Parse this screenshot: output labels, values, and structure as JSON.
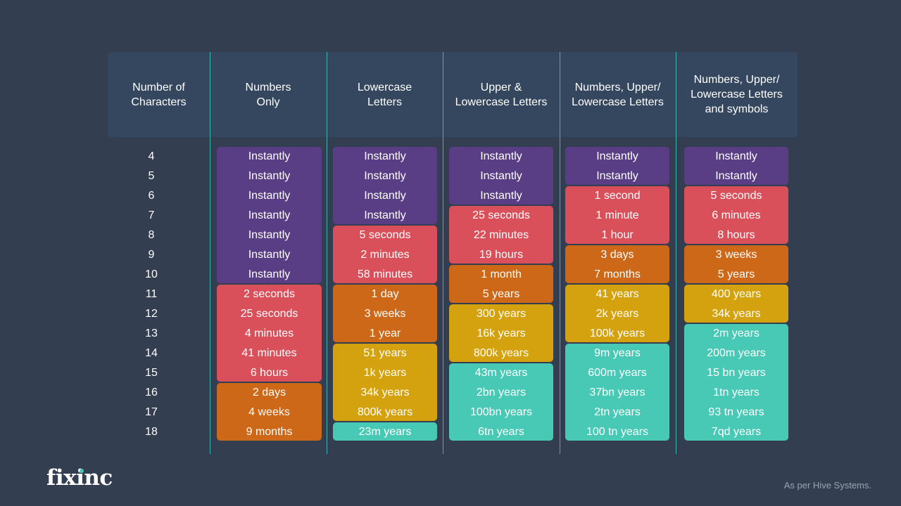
{
  "colors": {
    "background": "#333e50",
    "header_band": "#35475f",
    "divider": "#3fb4b0",
    "instantly": "#5a3e85",
    "seconds_to_hours": "#d9505a",
    "days_to_months": "#cc6817",
    "years_to_thousands": "#d4a20e",
    "millions_and_more": "#48c9b6"
  },
  "brand": {
    "logo_text": "fixinc",
    "source_note": "As per Hive Systems."
  },
  "chart_data": {
    "type": "table",
    "row_header": "Number of\nCharacters",
    "rows": [
      "4",
      "5",
      "6",
      "7",
      "8",
      "9",
      "10",
      "11",
      "12",
      "13",
      "14",
      "15",
      "16",
      "17",
      "18"
    ],
    "columns": [
      {
        "name": "Numbers\nOnly",
        "values": [
          "Instantly",
          "Instantly",
          "Instantly",
          "Instantly",
          "Instantly",
          "Instantly",
          "Instantly",
          "2 seconds",
          "25 seconds",
          "4 minutes",
          "41 minutes",
          "6 hours",
          "2 days",
          "4 weeks",
          "9 months"
        ],
        "tiers": [
          "instantly",
          "instantly",
          "instantly",
          "instantly",
          "instantly",
          "instantly",
          "instantly",
          "seconds_to_hours",
          "seconds_to_hours",
          "seconds_to_hours",
          "seconds_to_hours",
          "seconds_to_hours",
          "days_to_months",
          "days_to_months",
          "days_to_months"
        ]
      },
      {
        "name": "Lowercase\nLetters",
        "values": [
          "Instantly",
          "Instantly",
          "Instantly",
          "Instantly",
          "5 seconds",
          "2 minutes",
          "58 minutes",
          "1 day",
          "3 weeks",
          "1 year",
          "51 years",
          "1k years",
          "34k years",
          "800k years",
          "23m years"
        ],
        "tiers": [
          "instantly",
          "instantly",
          "instantly",
          "instantly",
          "seconds_to_hours",
          "seconds_to_hours",
          "seconds_to_hours",
          "days_to_months",
          "days_to_months",
          "days_to_months",
          "years_to_thousands",
          "years_to_thousands",
          "years_to_thousands",
          "years_to_thousands",
          "millions_and_more"
        ]
      },
      {
        "name": "Upper &\nLowercase Letters",
        "values": [
          "Instantly",
          "Instantly",
          "Instantly",
          "25 seconds",
          "22 minutes",
          "19 hours",
          "1 month",
          "5 years",
          "300 years",
          "16k years",
          "800k years",
          "43m years",
          "2bn years",
          "100bn years",
          "6tn years"
        ],
        "tiers": [
          "instantly",
          "instantly",
          "instantly",
          "seconds_to_hours",
          "seconds_to_hours",
          "seconds_to_hours",
          "days_to_months",
          "days_to_months",
          "years_to_thousands",
          "years_to_thousands",
          "years_to_thousands",
          "millions_and_more",
          "millions_and_more",
          "millions_and_more",
          "millions_and_more"
        ]
      },
      {
        "name": "Numbers, Upper/\nLowercase Letters",
        "values": [
          "Instantly",
          "Instantly",
          "1 second",
          "1 minute",
          "1 hour",
          "3 days",
          "7 months",
          "41 years",
          "2k years",
          "100k years",
          "9m years",
          "600m years",
          "37bn years",
          "2tn years",
          "100 tn years"
        ],
        "tiers": [
          "instantly",
          "instantly",
          "seconds_to_hours",
          "seconds_to_hours",
          "seconds_to_hours",
          "days_to_months",
          "days_to_months",
          "years_to_thousands",
          "years_to_thousands",
          "years_to_thousands",
          "millions_and_more",
          "millions_and_more",
          "millions_and_more",
          "millions_and_more",
          "millions_and_more"
        ]
      },
      {
        "name": "Numbers, Upper/\nLowercase Letters\nand symbols",
        "values": [
          "Instantly",
          "Instantly",
          "5 seconds",
          "6 minutes",
          "8 hours",
          "3 weeks",
          "5 years",
          "400 years",
          "34k years",
          "2m years",
          "200m years",
          "15 bn years",
          "1tn years",
          "93 tn years",
          "7qd years"
        ],
        "tiers": [
          "instantly",
          "instantly",
          "seconds_to_hours",
          "seconds_to_hours",
          "seconds_to_hours",
          "days_to_months",
          "days_to_months",
          "years_to_thousands",
          "years_to_thousands",
          "millions_and_more",
          "millions_and_more",
          "millions_and_more",
          "millions_and_more",
          "millions_and_more",
          "millions_and_more"
        ]
      }
    ]
  }
}
